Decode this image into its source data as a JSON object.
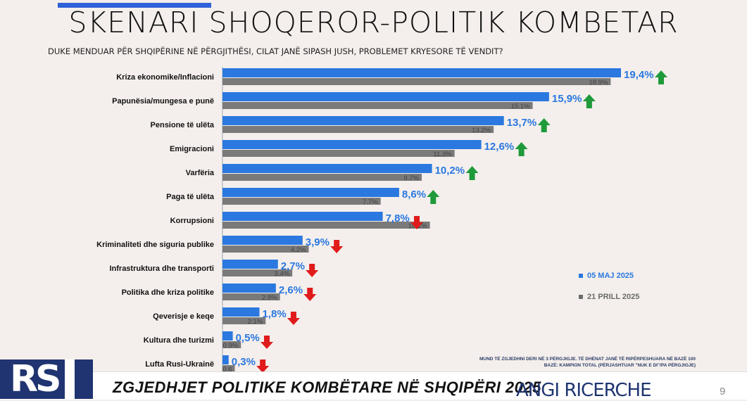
{
  "header": {
    "title": "SKENARI SHOQEROR-POLITIK KOMBETAR",
    "question": "DUKE MENDUAR PËR SHQIPËRINE NË PËRGJITHËSI, CILAT JANË SIPASH JUSH, PROBLEMET KRYESORE TË VENDIT?"
  },
  "legend": {
    "current": "05 MAJ 2025",
    "previous": "21 PRILL 2025"
  },
  "colors": {
    "current": "#2b78e0",
    "previous": "#7a7a7a",
    "up": "#1f9a3a",
    "down": "#e01b1b"
  },
  "chart_data": {
    "type": "bar",
    "orientation": "horizontal",
    "categories": [
      "Kriza ekonomike/Inflacioni",
      "Papunësia/mungesa e punë",
      "Pensione të ulëta",
      "Emigracioni",
      "Varfëria",
      "Paga të ulëta",
      "Korrupsioni",
      "Kriminaliteti dhe siguria publike",
      "Infrastruktura dhe transporti",
      "Politika dhe kriza politike",
      "Qeverisje e keqe",
      "Kultura dhe turizmi",
      "Lufta Rusi-Ukrainë"
    ],
    "series": [
      {
        "name": "05 MAJ 2025",
        "values": [
          19.4,
          15.9,
          13.7,
          12.6,
          10.2,
          8.6,
          7.8,
          3.9,
          2.7,
          2.6,
          1.8,
          0.5,
          0.3
        ],
        "labels": [
          "19,4%",
          "15,9%",
          "13,7%",
          "12,6%",
          "10,2%",
          "8,6%",
          "7,8%",
          "3,9%",
          "2,7%",
          "2,6%",
          "1,8%",
          "0,5%",
          "0,3%"
        ]
      },
      {
        "name": "21 PRILL 2025",
        "values": [
          18.9,
          15.1,
          13.2,
          11.3,
          9.7,
          7.7,
          10.1,
          4.2,
          3.4,
          2.8,
          2.1,
          0.9,
          0.6
        ],
        "labels": [
          "18.9%",
          "15.1%",
          "13.2%",
          "11.3%",
          "9.7%",
          "7.7%",
          "10.1%",
          "4.2%",
          "3.4%",
          "2.8%",
          "2.1%",
          "0.9%",
          "0.6"
        ]
      }
    ],
    "trend": [
      "up",
      "up",
      "up",
      "up",
      "up",
      "up",
      "down",
      "down",
      "down",
      "down",
      "down",
      "down",
      "down"
    ],
    "xlim": [
      0,
      19.4
    ]
  },
  "footnote": {
    "line1": "MUND TË ZGJEDHNI DERI NË 3 PËRGJIGJE. TË DHËNAT JANË TË RIPËRPESHUARA NË BAZË 100",
    "line2": "BAZË: KAMPION TOTAL (PËRJASHTUAR \"NUK E DI\"/PA PËRGJIGJE)"
  },
  "footer": {
    "logo": "RS",
    "title": "ZGJEDHJET POLITIKE KOMBËTARE NË SHQIPËRI 2025",
    "brand": "ANGI RICERCHE",
    "page": "9"
  }
}
